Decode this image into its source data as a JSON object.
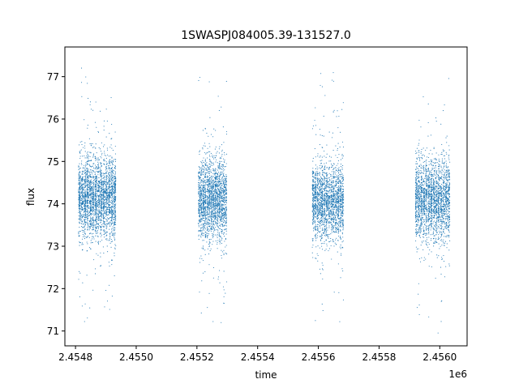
{
  "chart_data": {
    "type": "scatter",
    "title": "1SWASPJ084005.39-131527.0",
    "xlabel": "time",
    "ylabel": "flux",
    "x_offset_label": "1e6",
    "xlim": [
      2454765,
      2456090
    ],
    "ylim": [
      70.65,
      77.7
    ],
    "xticks": [
      2454800,
      2455000,
      2455200,
      2455400,
      2455600,
      2455800,
      2456000
    ],
    "xtick_labels": [
      "2.4548",
      "2.4550",
      "2.4552",
      "2.4554",
      "2.4556",
      "2.4558",
      "2.4560"
    ],
    "yticks": [
      71,
      72,
      73,
      74,
      75,
      76,
      77
    ],
    "ytick_labels": [
      "71",
      "72",
      "73",
      "74",
      "75",
      "76",
      "77"
    ],
    "grid": false,
    "legend": "none",
    "marker_color": "#1f77b4",
    "series": [
      {
        "seasons": [
          {
            "x_start": 2454810,
            "x_end": 2454935,
            "y_center": 74.15,
            "y_core_half_width": 0.75,
            "y_min": 71.0,
            "y_max": 77.3,
            "approx_points": 2600
          },
          {
            "x_start": 2455205,
            "x_end": 2455300,
            "y_center": 74.1,
            "y_core_half_width": 0.75,
            "y_min": 71.05,
            "y_max": 77.2,
            "approx_points": 2000
          },
          {
            "x_start": 2455580,
            "x_end": 2455685,
            "y_center": 74.05,
            "y_core_half_width": 0.7,
            "y_min": 71.05,
            "y_max": 77.2,
            "approx_points": 2000
          },
          {
            "x_start": 2455920,
            "x_end": 2456035,
            "y_center": 74.1,
            "y_core_half_width": 0.75,
            "y_min": 70.95,
            "y_max": 77.3,
            "approx_points": 2200
          }
        ]
      }
    ]
  }
}
